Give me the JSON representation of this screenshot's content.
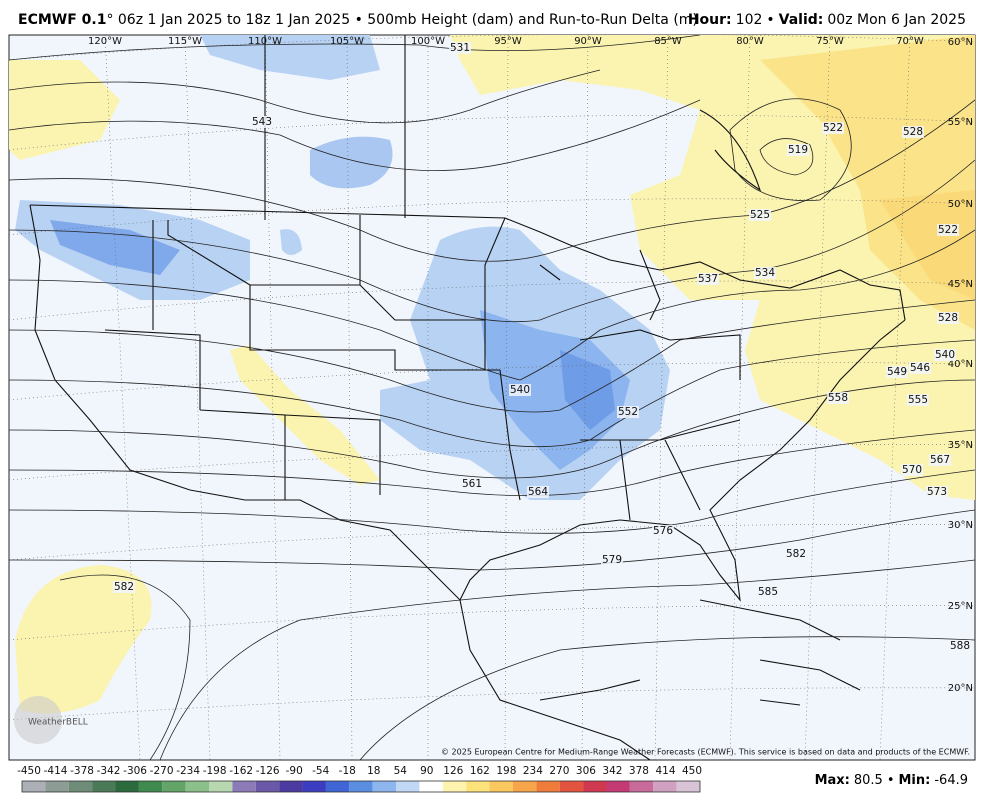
{
  "header": {
    "title_bold": "ECMWF 0.1",
    "title_rest": "° 06z 1 Jan 2025 to 18z 1 Jan 2025 • 500mb Height (dam) and Run-to-Run Delta (m)",
    "hour_label": "Hour:",
    "hour": "102",
    "separator": "•",
    "valid_label": "Valid:",
    "valid": "00z Mon 6 Jan 2025"
  },
  "map": {
    "longitude_labels": [
      "120°W",
      "115°W",
      "110°W",
      "105°W",
      "100°W",
      "95°W",
      "90°W",
      "85°W",
      "80°W",
      "75°W",
      "70°W"
    ],
    "latitude_labels": [
      "60°N",
      "55°N",
      "50°N",
      "45°N",
      "40°N",
      "35°N",
      "30°N",
      "25°N",
      "20°N"
    ],
    "contour_labels": [
      "531",
      "543",
      "519",
      "522",
      "528",
      "525",
      "534",
      "537",
      "522",
      "528",
      "540",
      "546",
      "549",
      "540",
      "552",
      "558",
      "555",
      "561",
      "564",
      "567",
      "570",
      "573",
      "576",
      "579",
      "582",
      "585",
      "588",
      "582"
    ],
    "logo": "WeatherBELL",
    "copyright": "© 2025 European Centre for Medium-Range Weather Forecasts (ECMWF). This service is based on data and products of the ECMWF."
  },
  "colorbar": {
    "labels": [
      -450,
      -414,
      -378,
      -342,
      -306,
      -270,
      -234,
      -198,
      -162,
      -126,
      -90,
      -54,
      -18,
      18,
      54,
      90,
      126,
      162,
      198,
      234,
      270,
      306,
      342,
      378,
      414,
      450
    ]
  },
  "footer": {
    "max_label": "Max:",
    "max": 80.5,
    "separator": "•",
    "min_label": "Min:",
    "min": -64.9
  }
}
